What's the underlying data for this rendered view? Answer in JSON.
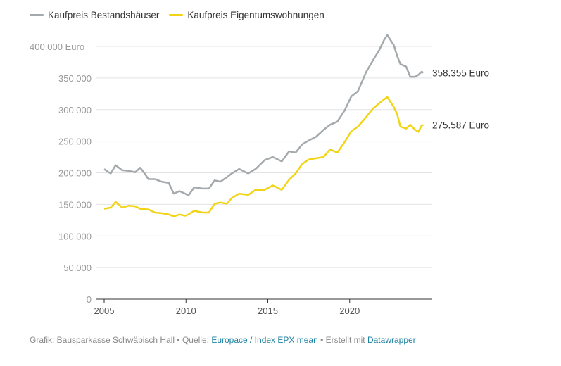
{
  "chart_data": {
    "type": "line",
    "title": "",
    "xlabel": "",
    "ylabel": "",
    "xlim": [
      2004.5,
      2025.3
    ],
    "ylim": [
      0,
      400000
    ],
    "grid": true,
    "legend_position": "top-left",
    "x_ticks": [
      2005,
      2010,
      2015,
      2020
    ],
    "x_tick_labels": [
      "2005",
      "2010",
      "2015",
      "2020"
    ],
    "y_ticks": [
      0,
      50000,
      100000,
      150000,
      200000,
      250000,
      300000,
      350000,
      400000
    ],
    "y_tick_labels": [
      "0",
      "50.000",
      "100.000",
      "150.000",
      "200.000",
      "250.000",
      "300.000",
      "350.000",
      "400.000 Euro"
    ],
    "series": [
      {
        "name": "Kaufpreis Bestandshäuser",
        "color": "#a3a9ac",
        "end_label": "358.355 Euro",
        "points": [
          [
            2005.0,
            206000
          ],
          [
            2005.2,
            202000
          ],
          [
            2005.4,
            199000
          ],
          [
            2005.7,
            212000
          ],
          [
            2006.1,
            204000
          ],
          [
            2006.5,
            203000
          ],
          [
            2006.9,
            201000
          ],
          [
            2007.2,
            208000
          ],
          [
            2007.5,
            198000
          ],
          [
            2007.7,
            190000
          ],
          [
            2008.1,
            190000
          ],
          [
            2008.5,
            186000
          ],
          [
            2008.95,
            184000
          ],
          [
            2009.25,
            167000
          ],
          [
            2009.6,
            171000
          ],
          [
            2009.95,
            167000
          ],
          [
            2010.15,
            164000
          ],
          [
            2010.5,
            177000
          ],
          [
            2011.0,
            175000
          ],
          [
            2011.4,
            175000
          ],
          [
            2011.75,
            188000
          ],
          [
            2012.1,
            186000
          ],
          [
            2012.5,
            193000
          ],
          [
            2012.8,
            199000
          ],
          [
            2013.25,
            206000
          ],
          [
            2013.8,
            199000
          ],
          [
            2014.25,
            206000
          ],
          [
            2014.8,
            220000
          ],
          [
            2015.3,
            225000
          ],
          [
            2015.85,
            218000
          ],
          [
            2016.3,
            234000
          ],
          [
            2016.7,
            232000
          ],
          [
            2017.1,
            245000
          ],
          [
            2017.5,
            251000
          ],
          [
            2017.95,
            257000
          ],
          [
            2018.4,
            268000
          ],
          [
            2018.8,
            276000
          ],
          [
            2019.25,
            281000
          ],
          [
            2019.7,
            299000
          ],
          [
            2020.1,
            321000
          ],
          [
            2020.5,
            329000
          ],
          [
            2021.0,
            359000
          ],
          [
            2021.4,
            377000
          ],
          [
            2021.8,
            394000
          ],
          [
            2022.1,
            410000
          ],
          [
            2022.3,
            418000
          ],
          [
            2022.7,
            402000
          ],
          [
            2022.9,
            385000
          ],
          [
            2023.1,
            372000
          ],
          [
            2023.45,
            368000
          ],
          [
            2023.7,
            352000
          ],
          [
            2024.0,
            352000
          ],
          [
            2024.2,
            355000
          ],
          [
            2024.4,
            360000
          ],
          [
            2024.5,
            358355
          ]
        ]
      },
      {
        "name": "Kaufpreis Eigentumswohnungen",
        "color": "#f2d417",
        "end_label": "275.587 Euro",
        "points": [
          [
            2005.0,
            143000
          ],
          [
            2005.4,
            145000
          ],
          [
            2005.7,
            154000
          ],
          [
            2006.1,
            145000
          ],
          [
            2006.5,
            148000
          ],
          [
            2006.9,
            147000
          ],
          [
            2007.2,
            143000
          ],
          [
            2007.7,
            142000
          ],
          [
            2008.1,
            137000
          ],
          [
            2008.5,
            136000
          ],
          [
            2008.95,
            134000
          ],
          [
            2009.25,
            131000
          ],
          [
            2009.6,
            134000
          ],
          [
            2009.95,
            132000
          ],
          [
            2010.15,
            134000
          ],
          [
            2010.5,
            140000
          ],
          [
            2011.0,
            137000
          ],
          [
            2011.4,
            137000
          ],
          [
            2011.75,
            151000
          ],
          [
            2012.1,
            153000
          ],
          [
            2012.5,
            151000
          ],
          [
            2012.8,
            160000
          ],
          [
            2013.25,
            167000
          ],
          [
            2013.8,
            165000
          ],
          [
            2014.25,
            173000
          ],
          [
            2014.8,
            173000
          ],
          [
            2015.3,
            180000
          ],
          [
            2015.85,
            173000
          ],
          [
            2016.3,
            189000
          ],
          [
            2016.7,
            199000
          ],
          [
            2017.1,
            214000
          ],
          [
            2017.5,
            221000
          ],
          [
            2017.95,
            223000
          ],
          [
            2018.4,
            225000
          ],
          [
            2018.8,
            237000
          ],
          [
            2019.25,
            232000
          ],
          [
            2019.7,
            249000
          ],
          [
            2020.1,
            266000
          ],
          [
            2020.5,
            273000
          ],
          [
            2021.0,
            288000
          ],
          [
            2021.4,
            301000
          ],
          [
            2021.8,
            310000
          ],
          [
            2022.3,
            320000
          ],
          [
            2022.7,
            304000
          ],
          [
            2022.9,
            293000
          ],
          [
            2023.1,
            273000
          ],
          [
            2023.45,
            270000
          ],
          [
            2023.7,
            276000
          ],
          [
            2024.0,
            268000
          ],
          [
            2024.2,
            265000
          ],
          [
            2024.4,
            275000
          ],
          [
            2024.5,
            275587
          ]
        ]
      }
    ]
  },
  "footer": {
    "prefix": "Grafik: Bausparkasse Schwäbisch Hall • Quelle: ",
    "source_link": "Europace / Index EPX mean",
    "middle": " • Erstellt mit ",
    "tool_link": "Datawrapper"
  }
}
